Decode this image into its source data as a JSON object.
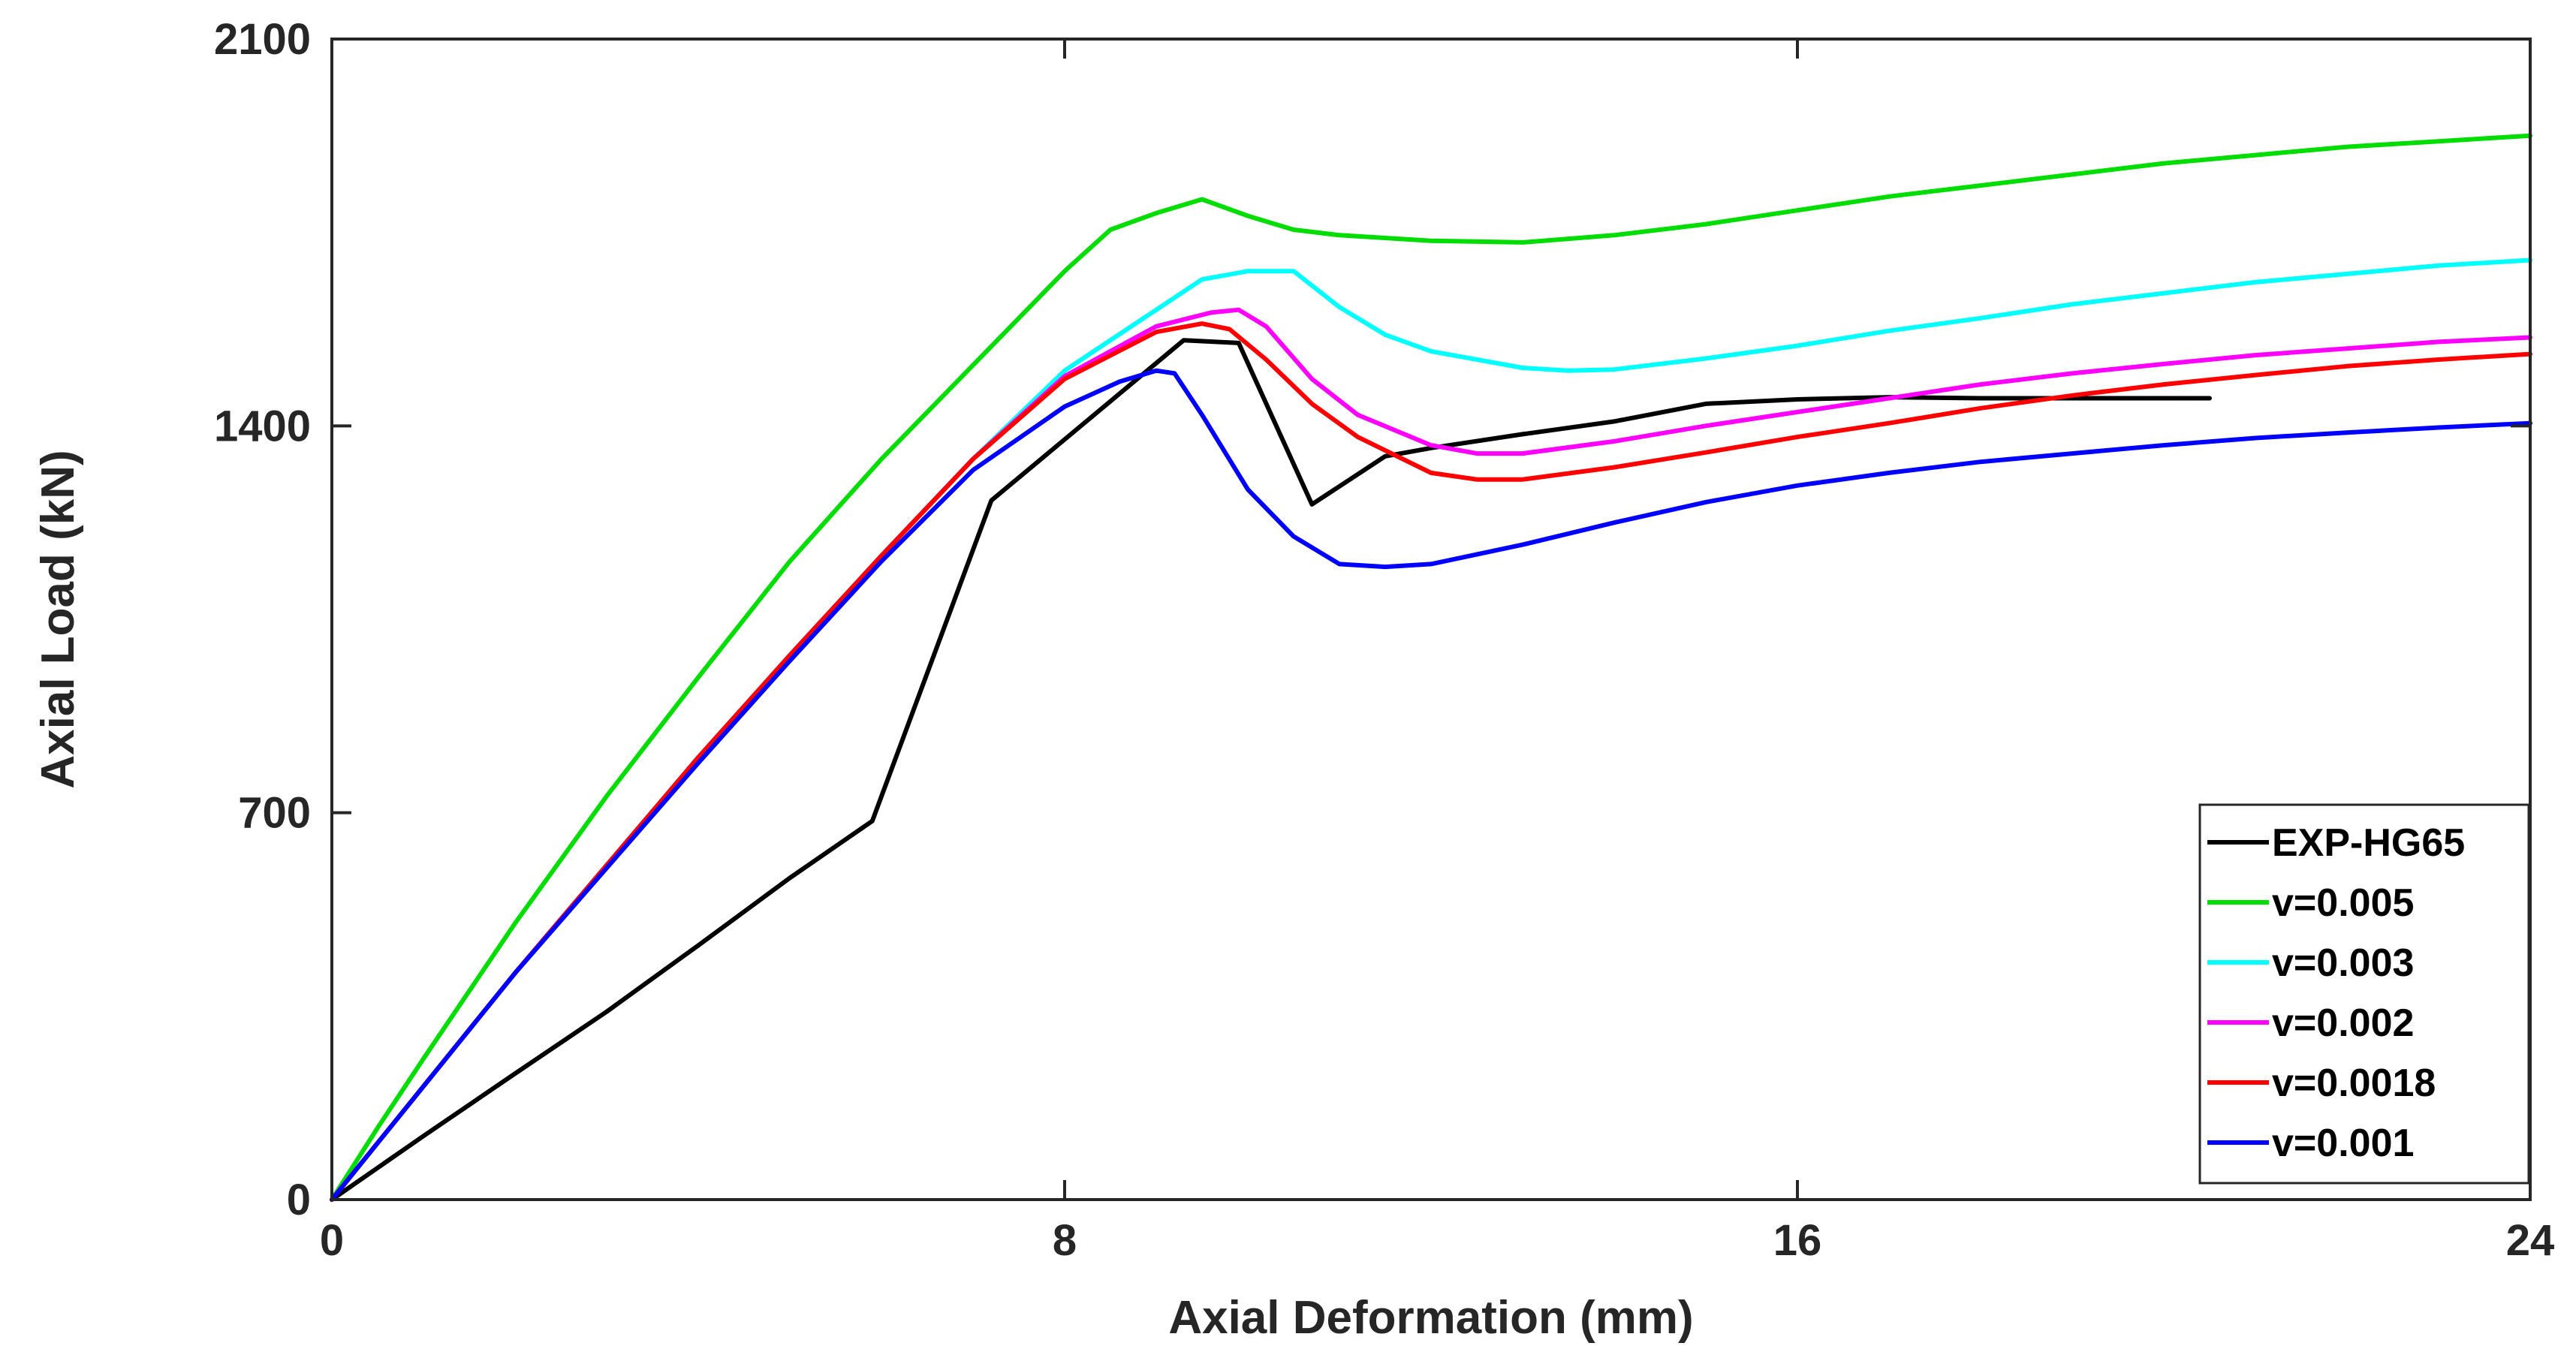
{
  "chart_data": {
    "type": "line",
    "title": "",
    "xlabel": "Axial Deformation (mm)",
    "ylabel": "Axial Load (kN)",
    "xlim": [
      0,
      24
    ],
    "ylim": [
      0,
      2100
    ],
    "xticks": [
      0,
      8,
      16,
      24
    ],
    "yticks": [
      0,
      700,
      1400,
      2100
    ],
    "xtick_labels": [
      "0",
      "8",
      "16",
      "24"
    ],
    "ytick_labels": [
      "0",
      "700",
      "1400",
      "2100"
    ],
    "grid": false,
    "legend_position": "bottom-right",
    "series": [
      {
        "name": "EXP-HG65",
        "color": "#000000",
        "points": [
          [
            0,
            0
          ],
          [
            1,
            115
          ],
          [
            2,
            228
          ],
          [
            3,
            340
          ],
          [
            4,
            460
          ],
          [
            5,
            582
          ],
          [
            5.9,
            685
          ],
          [
            7.2,
            1265
          ],
          [
            9.3,
            1555
          ],
          [
            9.9,
            1550
          ],
          [
            10.7,
            1258
          ],
          [
            11.5,
            1345
          ],
          [
            12,
            1360
          ],
          [
            13,
            1385
          ],
          [
            14,
            1408
          ],
          [
            15,
            1440
          ],
          [
            16,
            1448
          ],
          [
            17,
            1452
          ],
          [
            18,
            1450
          ],
          [
            19,
            1450
          ],
          [
            20,
            1450
          ],
          [
            20.5,
            1450
          ]
        ]
      },
      {
        "name": "v=0.005",
        "color": "#00dd00",
        "points": [
          [
            0,
            0
          ],
          [
            0.5,
            130
          ],
          [
            1,
            255
          ],
          [
            2,
            500
          ],
          [
            3,
            730
          ],
          [
            4,
            945
          ],
          [
            5,
            1155
          ],
          [
            6,
            1340
          ],
          [
            7,
            1510
          ],
          [
            8,
            1680
          ],
          [
            8.5,
            1755
          ],
          [
            9,
            1785
          ],
          [
            9.5,
            1810
          ],
          [
            10,
            1780
          ],
          [
            10.5,
            1755
          ],
          [
            11,
            1745
          ],
          [
            12,
            1735
          ],
          [
            13,
            1732
          ],
          [
            14,
            1745
          ],
          [
            15,
            1765
          ],
          [
            16,
            1790
          ],
          [
            17,
            1815
          ],
          [
            18,
            1835
          ],
          [
            19,
            1855
          ],
          [
            20,
            1875
          ],
          [
            21,
            1890
          ],
          [
            22,
            1905
          ],
          [
            23,
            1915
          ],
          [
            24,
            1925
          ]
        ]
      },
      {
        "name": "v=0.003",
        "color": "#00ffff",
        "points": [
          [
            0,
            0
          ],
          [
            1,
            205
          ],
          [
            2,
            410
          ],
          [
            3,
            605
          ],
          [
            4,
            800
          ],
          [
            5,
            985
          ],
          [
            6,
            1165
          ],
          [
            7,
            1340
          ],
          [
            8,
            1500
          ],
          [
            9,
            1610
          ],
          [
            9.5,
            1665
          ],
          [
            10,
            1680
          ],
          [
            10.5,
            1680
          ],
          [
            11,
            1615
          ],
          [
            11.5,
            1565
          ],
          [
            12,
            1535
          ],
          [
            13,
            1505
          ],
          [
            13.5,
            1500
          ],
          [
            14,
            1502
          ],
          [
            15,
            1522
          ],
          [
            16,
            1545
          ],
          [
            17,
            1572
          ],
          [
            18,
            1595
          ],
          [
            19,
            1620
          ],
          [
            20,
            1640
          ],
          [
            21,
            1660
          ],
          [
            22,
            1675
          ],
          [
            23,
            1690
          ],
          [
            24,
            1700
          ]
        ]
      },
      {
        "name": "v=0.002",
        "color": "#ff00ff",
        "points": [
          [
            0,
            0
          ],
          [
            1,
            205
          ],
          [
            2,
            410
          ],
          [
            3,
            605
          ],
          [
            4,
            800
          ],
          [
            5,
            985
          ],
          [
            6,
            1165
          ],
          [
            7,
            1340
          ],
          [
            8,
            1490
          ],
          [
            9,
            1580
          ],
          [
            9.6,
            1605
          ],
          [
            9.9,
            1610
          ],
          [
            10.2,
            1580
          ],
          [
            10.7,
            1485
          ],
          [
            11.2,
            1420
          ],
          [
            12,
            1365
          ],
          [
            12.5,
            1350
          ],
          [
            13,
            1350
          ],
          [
            14,
            1372
          ],
          [
            15,
            1400
          ],
          [
            16,
            1425
          ],
          [
            17,
            1450
          ],
          [
            18,
            1475
          ],
          [
            19,
            1495
          ],
          [
            20,
            1512
          ],
          [
            21,
            1528
          ],
          [
            22,
            1540
          ],
          [
            23,
            1552
          ],
          [
            24,
            1560
          ]
        ]
      },
      {
        "name": "v=0.0018",
        "color": "#ff0000",
        "points": [
          [
            0,
            0
          ],
          [
            1,
            205
          ],
          [
            2,
            410
          ],
          [
            3,
            605
          ],
          [
            4,
            800
          ],
          [
            5,
            985
          ],
          [
            6,
            1165
          ],
          [
            7,
            1340
          ],
          [
            8,
            1485
          ],
          [
            9,
            1570
          ],
          [
            9.5,
            1585
          ],
          [
            9.8,
            1575
          ],
          [
            10.2,
            1520
          ],
          [
            10.7,
            1440
          ],
          [
            11.2,
            1380
          ],
          [
            12,
            1315
          ],
          [
            12.5,
            1303
          ],
          [
            13,
            1303
          ],
          [
            14,
            1325
          ],
          [
            15,
            1352
          ],
          [
            16,
            1380
          ],
          [
            17,
            1405
          ],
          [
            18,
            1432
          ],
          [
            19,
            1455
          ],
          [
            20,
            1475
          ],
          [
            21,
            1492
          ],
          [
            22,
            1508
          ],
          [
            23,
            1520
          ],
          [
            24,
            1530
          ]
        ]
      },
      {
        "name": "v=0.001",
        "color": "#0000ff",
        "points": [
          [
            0,
            0
          ],
          [
            1,
            205
          ],
          [
            2,
            410
          ],
          [
            3,
            600
          ],
          [
            4,
            790
          ],
          [
            5,
            975
          ],
          [
            6,
            1155
          ],
          [
            7,
            1320
          ],
          [
            8,
            1435
          ],
          [
            8.6,
            1480
          ],
          [
            9,
            1500
          ],
          [
            9.2,
            1495
          ],
          [
            9.5,
            1420
          ],
          [
            10,
            1285
          ],
          [
            10.5,
            1200
          ],
          [
            11,
            1150
          ],
          [
            11.5,
            1145
          ],
          [
            12,
            1150
          ],
          [
            13,
            1185
          ],
          [
            14,
            1225
          ],
          [
            15,
            1262
          ],
          [
            16,
            1292
          ],
          [
            17,
            1315
          ],
          [
            18,
            1335
          ],
          [
            19,
            1350
          ],
          [
            20,
            1365
          ],
          [
            21,
            1378
          ],
          [
            22,
            1388
          ],
          [
            23,
            1397
          ],
          [
            24,
            1405
          ]
        ]
      }
    ]
  }
}
